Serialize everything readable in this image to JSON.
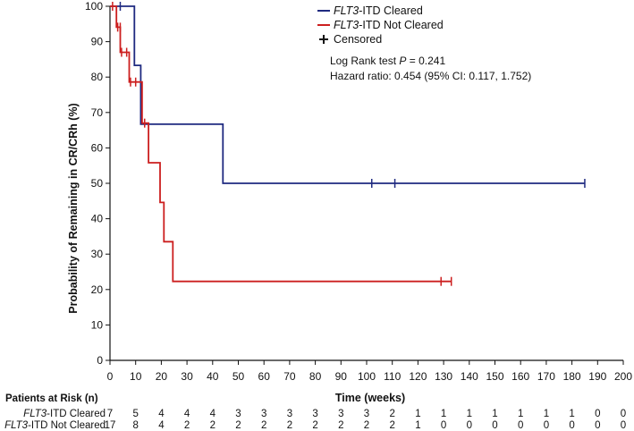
{
  "chart_data": {
    "type": "line",
    "subtype": "kaplan-meier",
    "xlabel": "Time (weeks)",
    "ylabel": "Probability of Remaining in CR/CRh (%)",
    "xlim": [
      0,
      200
    ],
    "ylim": [
      0,
      100
    ],
    "xticks": [
      0,
      10,
      20,
      30,
      40,
      50,
      60,
      70,
      80,
      90,
      100,
      110,
      120,
      130,
      140,
      150,
      160,
      170,
      180,
      190,
      200
    ],
    "yticks": [
      0,
      10,
      20,
      30,
      40,
      50,
      60,
      70,
      80,
      90,
      100
    ],
    "series": [
      {
        "name_italic": "FLT3",
        "name_rest": "-ITD Cleared",
        "color": "#1f2a80",
        "steps": [
          [
            0,
            100
          ],
          [
            9.5,
            100
          ],
          [
            9.5,
            83.3
          ],
          [
            12,
            83.3
          ],
          [
            12,
            66.7
          ],
          [
            44,
            66.7
          ],
          [
            44,
            50
          ],
          [
            185,
            50
          ]
        ],
        "censored": [
          [
            4,
            100
          ],
          [
            102,
            50
          ],
          [
            111,
            50
          ],
          [
            185,
            50
          ]
        ]
      },
      {
        "name_italic": "FLT3",
        "name_rest": "-ITD Not Cleared",
        "color": "#cc1f1f",
        "steps": [
          [
            0,
            100
          ],
          [
            2.5,
            100
          ],
          [
            2.5,
            94.1
          ],
          [
            4,
            94.1
          ],
          [
            4,
            87
          ],
          [
            7.5,
            87
          ],
          [
            7.5,
            78.6
          ],
          [
            12.5,
            78.6
          ],
          [
            12.5,
            67
          ],
          [
            15,
            67
          ],
          [
            15,
            55.8
          ],
          [
            19.5,
            55.8
          ],
          [
            19.5,
            44.6
          ],
          [
            21,
            44.6
          ],
          [
            21,
            33.5
          ],
          [
            24.5,
            33.5
          ],
          [
            24.5,
            22.3
          ],
          [
            133,
            22.3
          ]
        ],
        "censored": [
          [
            1,
            100
          ],
          [
            3,
            94.1
          ],
          [
            4,
            94.1
          ],
          [
            4.5,
            87
          ],
          [
            6.5,
            87
          ],
          [
            8,
            78.6
          ],
          [
            10,
            78.6
          ],
          [
            13.5,
            67
          ],
          [
            129,
            22.3
          ],
          [
            133,
            22.3
          ]
        ]
      }
    ],
    "legend": {
      "placement": "top-right",
      "censored_label": "Censored"
    },
    "stats": {
      "logrank_prefix": "Log Rank test ",
      "logrank_p_symbol": "P",
      "logrank_suffix": " = 0.241",
      "hazard": "Hazard ratio: 0.454 (95% CI: 0.117, 1.752)"
    },
    "risk_table": {
      "title": "Patients at Risk (n)",
      "rows": [
        {
          "label_italic": "FLT3",
          "label_rest": "-ITD Cleared",
          "values": [
            7,
            5,
            4,
            4,
            4,
            3,
            3,
            3,
            3,
            3,
            3,
            2,
            1,
            1,
            1,
            1,
            1,
            1,
            1,
            0,
            0
          ]
        },
        {
          "label_italic": "FLT3",
          "label_rest": "-ITD Not Cleared",
          "values": [
            17,
            8,
            4,
            2,
            2,
            2,
            2,
            2,
            2,
            2,
            2,
            2,
            1,
            0,
            0,
            0,
            0,
            0,
            0,
            0,
            0
          ]
        }
      ]
    }
  }
}
